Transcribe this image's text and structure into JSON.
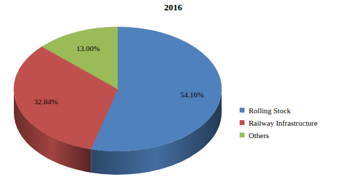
{
  "chart_data": {
    "type": "pie",
    "title": "2016",
    "categories": [
      "Rolling Stock",
      "Railway Infrastructure",
      "Others"
    ],
    "values": [
      54.16,
      32.84,
      13.0
    ],
    "value_labels": [
      "54.16%",
      "32.84%",
      "13.00%"
    ],
    "colors": [
      "#4f81bd",
      "#c0504d",
      "#9bbb59"
    ],
    "data_labels": true,
    "legend": "right"
  }
}
